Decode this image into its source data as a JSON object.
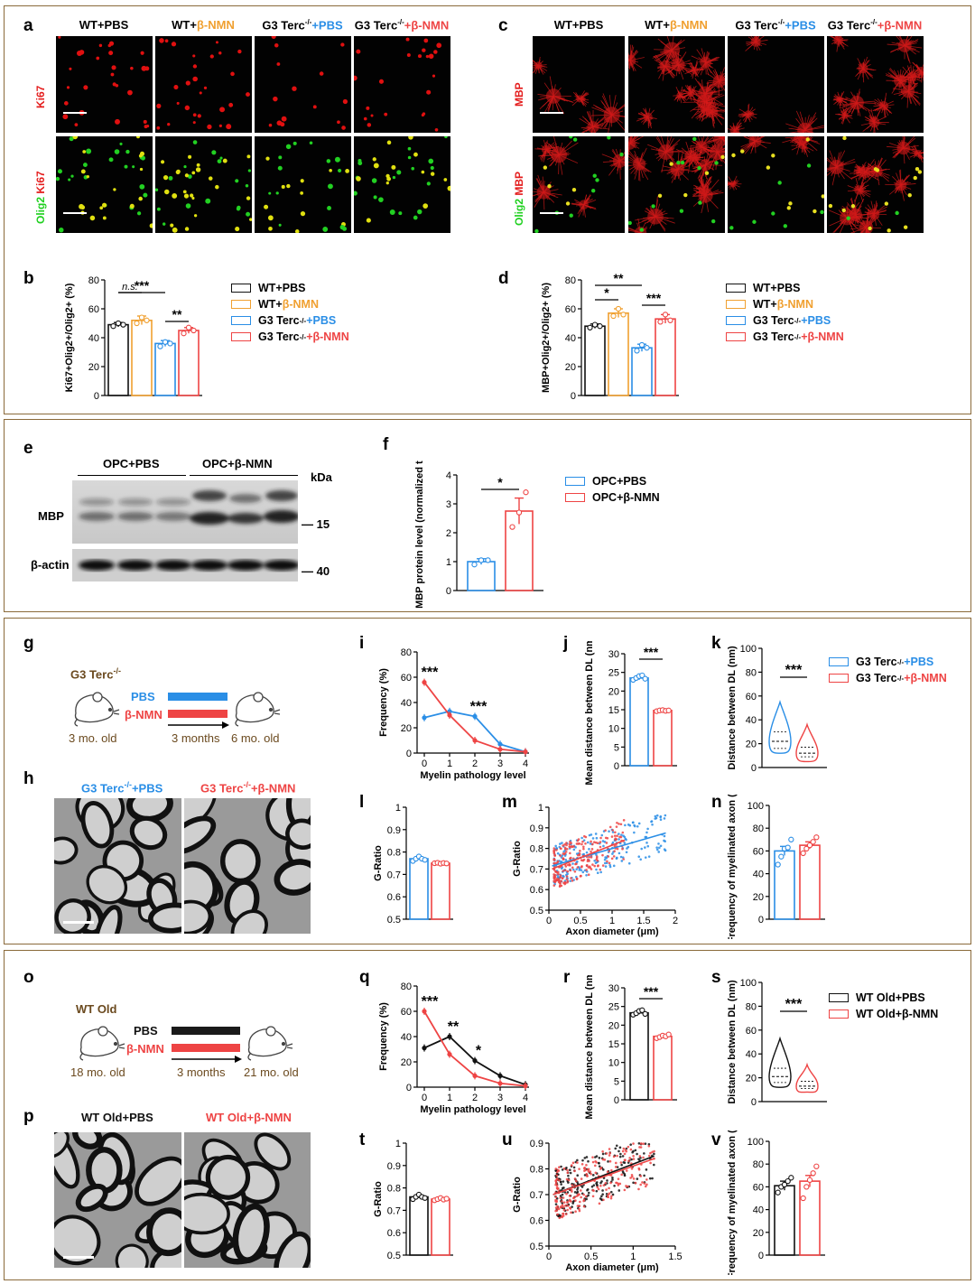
{
  "panels": {
    "a": "a",
    "b": "b",
    "c": "c",
    "d": "d",
    "e": "e",
    "f": "f",
    "g": "g",
    "h": "h",
    "i": "i",
    "j": "j",
    "k": "k",
    "l": "l",
    "m": "m",
    "n": "n",
    "o": "o",
    "p": "p",
    "q": "q",
    "r": "r",
    "s": "s",
    "t": "t",
    "u": "u",
    "v": "v"
  },
  "colors": {
    "black": "#111111",
    "orange": "#f0a030",
    "blue": "#2a8ee6",
    "red": "#ee4444",
    "brown": "#6b4a1f"
  },
  "section1": {
    "col_a": [
      {
        "p1": "WT+PBS",
        "p2": "",
        "p3": "",
        "c2": ""
      },
      {
        "p1": "WT+",
        "p2": "β-NMN",
        "p3": "",
        "c2": "orange"
      },
      {
        "p1": "G3 Terc",
        "sup": "-/-",
        "p2": "+PBS",
        "c2": "blue"
      },
      {
        "p1": "G3 Terc",
        "sup": "-/-",
        "p2": "+β-NMN",
        "c2": "red"
      }
    ],
    "row_a1": "Ki67",
    "row_a2_green": "Olig2",
    "row_a2_red": "Ki67",
    "row_c1": "MBP",
    "row_c2_green": "Olig2",
    "row_c2_red": "MBP",
    "legend": [
      {
        "t": "WT+PBS",
        "c": "black"
      },
      {
        "t": "WT+",
        "t2": "β-NMN",
        "c": "orange"
      },
      {
        "t": "G3 Terc",
        "sup": "-/-",
        "t2": "+PBS",
        "c": "blue"
      },
      {
        "t": "G3 Terc",
        "sup": "-/-",
        "t2": "+β-NMN",
        "c": "red"
      }
    ]
  },
  "chart_data": [
    {
      "id": "b",
      "type": "bar",
      "ylabel": "Ki67+Olig2+/Olig2+ (%)",
      "ylim": [
        0,
        80
      ],
      "yticks": [
        0,
        20,
        40,
        60,
        80
      ],
      "categories": [
        "WT+PBS",
        "WT+β-NMN",
        "G3 Terc-/-+PBS",
        "G3 Terc-/-+β-NMN"
      ],
      "values": [
        49,
        52,
        36,
        45
      ],
      "errors": [
        1.5,
        3,
        2,
        2
      ],
      "points": [
        [
          48,
          50,
          49
        ],
        [
          50,
          54,
          52
        ],
        [
          34,
          37,
          36
        ],
        [
          43,
          47,
          45
        ]
      ],
      "annotations": [
        {
          "text": "n.s.",
          "from": 0,
          "to": 1
        },
        {
          "text": "***",
          "from": 0,
          "to": 2
        },
        {
          "text": "**",
          "from": 2,
          "to": 3
        }
      ]
    },
    {
      "id": "d",
      "type": "bar",
      "ylabel": "MBP+Olig2+/Olig2+ (%)",
      "ylim": [
        0,
        80
      ],
      "yticks": [
        0,
        20,
        40,
        60,
        80
      ],
      "categories": [
        "WT+PBS",
        "WT+β-NMN",
        "G3 Terc-/-+PBS",
        "G3 Terc-/-+β-NMN"
      ],
      "values": [
        48,
        57,
        33,
        53
      ],
      "errors": [
        1.5,
        3,
        2.5,
        3
      ],
      "points": [
        [
          47,
          49,
          48
        ],
        [
          55,
          60,
          56
        ],
        [
          31,
          35,
          33
        ],
        [
          51,
          56,
          52
        ]
      ],
      "annotations": [
        {
          "text": "*",
          "from": 0,
          "to": 1
        },
        {
          "text": "**",
          "from": 0,
          "to": 2
        },
        {
          "text": "***",
          "from": 2,
          "to": 3
        }
      ]
    },
    {
      "id": "f",
      "type": "bar",
      "ylabel": "Relative MBP protein level (normalized to β-actin)",
      "ylim": [
        0,
        4
      ],
      "yticks": [
        0,
        1,
        2,
        3,
        4
      ],
      "categories": [
        "OPC+PBS",
        "OPC+β-NMN"
      ],
      "values": [
        1.0,
        2.75
      ],
      "errors": [
        0.1,
        0.45
      ],
      "points": [
        [
          0.9,
          1.05,
          1.05
        ],
        [
          2.2,
          2.7,
          3.4
        ]
      ],
      "annotations": [
        {
          "text": "*",
          "from": 0,
          "to": 1
        }
      ]
    },
    {
      "id": "i",
      "type": "line",
      "xlabel": "Myelin pathology level",
      "ylabel": "Frequency (%)",
      "xlim": [
        0,
        4
      ],
      "ylim": [
        0,
        80
      ],
      "yticks": [
        0,
        20,
        40,
        60,
        80
      ],
      "x": [
        0,
        1,
        2,
        3,
        4
      ],
      "series": [
        {
          "name": "G3 Terc-/-+PBS",
          "values": [
            28,
            33,
            29,
            7,
            1
          ]
        },
        {
          "name": "G3 Terc-/-+β-NMN",
          "values": [
            56,
            30,
            10,
            3,
            1
          ]
        }
      ],
      "annotations": [
        {
          "text": "***",
          "x": 0
        },
        {
          "text": "***",
          "x": 2
        }
      ]
    },
    {
      "id": "j",
      "type": "bar",
      "ylabel": "Mean distance between DL (nm)",
      "ylim": [
        0,
        30
      ],
      "yticks": [
        0,
        5,
        10,
        15,
        20,
        25,
        30
      ],
      "categories": [
        "G3 Terc-/-+PBS",
        "G3 Terc-/-+β-NMN"
      ],
      "values": [
        23.5,
        14.8
      ],
      "errors": [
        0.5,
        0.2
      ],
      "points": [
        [
          23,
          23.5,
          24,
          24.2,
          23.3
        ],
        [
          14.6,
          14.8,
          14.9,
          14.7,
          14.8
        ]
      ],
      "annotations": [
        {
          "text": "***",
          "from": 0,
          "to": 1
        }
      ]
    },
    {
      "id": "k",
      "type": "violin",
      "ylabel": "Distance between DL (nm)",
      "ylim": [
        0,
        100
      ],
      "yticks": [
        0,
        20,
        40,
        60,
        80,
        100
      ],
      "categories": [
        "G3 Terc-/-+PBS",
        "G3 Terc-/-+β-NMN"
      ],
      "median": [
        22,
        12
      ],
      "q1": [
        16,
        9
      ],
      "q3": [
        30,
        17
      ],
      "min": [
        12,
        5
      ],
      "max": [
        55,
        36
      ],
      "annotations": [
        {
          "text": "***",
          "from": 0,
          "to": 1
        }
      ]
    },
    {
      "id": "l",
      "type": "bar",
      "ylabel": "G-Ratio",
      "ylim": [
        0.5,
        1.0
      ],
      "yticks": [
        0.5,
        0.6,
        0.7,
        0.8,
        0.9,
        1.0
      ],
      "categories": [
        "G3 Terc-/-+PBS",
        "G3 Terc-/-+β-NMN"
      ],
      "values": [
        0.77,
        0.75
      ],
      "errors": [
        0.005,
        0.003
      ],
      "points": [
        [
          0.76,
          0.77,
          0.78,
          0.77,
          0.765
        ],
        [
          0.75,
          0.752,
          0.748,
          0.751,
          0.749
        ]
      ],
      "annotations": []
    },
    {
      "id": "m",
      "type": "scatter",
      "xlabel": "Axon diameter (μm)",
      "ylabel": "G-Ratio",
      "xlim": [
        0,
        2
      ],
      "ylim": [
        0.5,
        1.0
      ],
      "yticks": [
        0.5,
        0.6,
        0.7,
        0.8,
        0.9,
        1.0
      ],
      "xticks": [
        0,
        0.5,
        1.0,
        1.5,
        2
      ],
      "series": [
        {
          "name": "G3 Terc-/-+PBS",
          "fit": [
            [
              0.05,
              0.715
            ],
            [
              1.85,
              0.875
            ]
          ]
        },
        {
          "name": "G3 Terc-/-+β-NMN",
          "fit": [
            [
              0.05,
              0.7
            ],
            [
              1.2,
              0.84
            ]
          ]
        }
      ]
    },
    {
      "id": "n",
      "type": "bar",
      "ylabel": "Frequency of myelinated axon (%)",
      "ylim": [
        0,
        100
      ],
      "yticks": [
        0,
        20,
        40,
        60,
        80,
        100
      ],
      "categories": [
        "G3 Terc-/-+PBS",
        "G3 Terc-/-+β-NMN"
      ],
      "values": [
        60,
        65
      ],
      "errors": [
        4,
        3
      ],
      "points": [
        [
          48,
          55,
          62,
          63,
          70
        ],
        [
          58,
          62,
          65,
          68,
          72
        ]
      ],
      "annotations": []
    },
    {
      "id": "q",
      "type": "line",
      "xlabel": "Myelin pathology level",
      "ylabel": "Frequency (%)",
      "xlim": [
        0,
        4
      ],
      "ylim": [
        0,
        80
      ],
      "yticks": [
        0,
        20,
        40,
        60,
        80
      ],
      "x": [
        0,
        1,
        2,
        3,
        4
      ],
      "series": [
        {
          "name": "WT Old+PBS",
          "values": [
            31,
            40,
            21,
            9,
            2
          ]
        },
        {
          "name": "WT Old+β-NMN",
          "values": [
            60,
            26,
            9,
            3,
            1
          ]
        }
      ],
      "annotations": [
        {
          "text": "***",
          "x": 0
        },
        {
          "text": "**",
          "x": 1
        },
        {
          "text": "*",
          "x": 2
        }
      ]
    },
    {
      "id": "r",
      "type": "bar",
      "ylabel": "Mean distance between DL (nm)",
      "ylim": [
        0,
        30
      ],
      "yticks": [
        0,
        5,
        10,
        15,
        20,
        25,
        30
      ],
      "categories": [
        "WT Old+PBS",
        "WT Old+β-NMN"
      ],
      "values": [
        23.3,
        17.0
      ],
      "errors": [
        0.4,
        0.3
      ],
      "points": [
        [
          22.8,
          23.2,
          23.8,
          24,
          23
        ],
        [
          16.5,
          16.8,
          17.2,
          17,
          17.5
        ]
      ],
      "annotations": [
        {
          "text": "***",
          "from": 0,
          "to": 1
        }
      ]
    },
    {
      "id": "s",
      "type": "violin",
      "ylabel": "Distance between DL (nm)",
      "ylim": [
        0,
        100
      ],
      "yticks": [
        0,
        20,
        40,
        60,
        80,
        100
      ],
      "categories": [
        "WT Old+PBS",
        "WT Old+β-NMN"
      ],
      "median": [
        21,
        13
      ],
      "q1": [
        16,
        11
      ],
      "q3": [
        28,
        17
      ],
      "min": [
        12,
        8
      ],
      "max": [
        53,
        31
      ],
      "annotations": [
        {
          "text": "***",
          "from": 0,
          "to": 1
        }
      ]
    },
    {
      "id": "t",
      "type": "bar",
      "ylabel": "G-Ratio",
      "ylim": [
        0.5,
        1.0
      ],
      "yticks": [
        0.5,
        0.6,
        0.7,
        0.8,
        0.9,
        1.0
      ],
      "categories": [
        "WT Old+PBS",
        "WT Old+β-NMN"
      ],
      "values": [
        0.76,
        0.75
      ],
      "errors": [
        0.005,
        0.005
      ],
      "points": [
        [
          0.75,
          0.76,
          0.77,
          0.76,
          0.755
        ],
        [
          0.745,
          0.75,
          0.755,
          0.748,
          0.752
        ]
      ],
      "annotations": []
    },
    {
      "id": "u",
      "type": "scatter",
      "xlabel": "Axon diameter (μm)",
      "ylabel": "G-Ratio",
      "xlim": [
        0,
        1.5
      ],
      "ylim": [
        0.5,
        0.9
      ],
      "yticks": [
        0.5,
        0.6,
        0.7,
        0.8,
        0.9
      ],
      "xticks": [
        0,
        0.5,
        1.0,
        1.5
      ],
      "series": [
        {
          "name": "WT Old+PBS",
          "fit": [
            [
              0.05,
              0.7
            ],
            [
              1.25,
              0.85
            ]
          ]
        },
        {
          "name": "WT Old+β-NMN",
          "fit": [
            [
              0.05,
              0.7
            ],
            [
              1.25,
              0.84
            ]
          ]
        }
      ]
    },
    {
      "id": "v",
      "type": "bar",
      "ylabel": "Frequency of myelinated axon (%)",
      "ylim": [
        0,
        100
      ],
      "yticks": [
        0,
        20,
        40,
        60,
        80,
        100
      ],
      "categories": [
        "WT Old+PBS",
        "WT Old+β-NMN"
      ],
      "values": [
        61,
        65
      ],
      "errors": [
        4,
        5
      ],
      "points": [
        [
          55,
          60,
          62,
          65,
          68
        ],
        [
          50,
          60,
          66,
          72,
          78
        ]
      ],
      "annotations": []
    }
  ],
  "section2": {
    "lane_group1": "OPC+PBS",
    "lane_group2": "OPC+β-NMN",
    "kda": "kDa",
    "mbp": "MBP",
    "bactin": "β-actin",
    "m15": "— 15",
    "m40": "— 40",
    "legend": [
      {
        "t": "OPC+PBS",
        "c": "blue"
      },
      {
        "t": "OPC+β-NMN",
        "c": "red"
      }
    ]
  },
  "section3": {
    "g_title": "G3 Terc",
    "g_sup": "-/-",
    "pbs": "PBS",
    "nmn": "β-NMN",
    "start": "3 mo. old",
    "dur": "3 months",
    "end": "6 mo. old",
    "h_left1": "G3 Terc",
    "h_left_sup": "-/-",
    "h_left2": "+PBS",
    "h_right1": "G3 Terc",
    "h_right_sup": "-/-",
    "h_right2": "+β-NMN",
    "legend": [
      {
        "t": "G3 Terc",
        "sup": "-/-",
        "t2": "+PBS",
        "c": "blue"
      },
      {
        "t": "G3 Terc",
        "sup": "-/-",
        "t2": "+β-NMN",
        "c": "red"
      }
    ]
  },
  "section4": {
    "o_title": "WT Old",
    "pbs": "PBS",
    "nmn": "β-NMN",
    "start": "18 mo. old",
    "dur": "3 months",
    "end": "21 mo. old",
    "p_left": "WT Old+PBS",
    "p_right": "WT Old+β-NMN",
    "legend": [
      {
        "t": "WT Old+PBS",
        "c": "black"
      },
      {
        "t": "WT Old+β-NMN",
        "c": "red"
      }
    ]
  }
}
